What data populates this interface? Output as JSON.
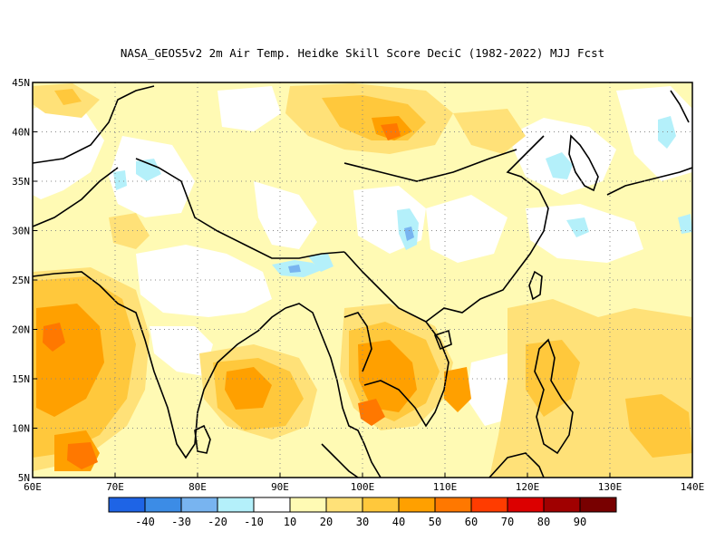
{
  "map": {
    "title": "NASA_GEOS5v2  2m Air Temp. Heidke Skill Score DeciC (1982-2022) MJJ Fcst",
    "lon_range": [
      60,
      140
    ],
    "lat_range": [
      5,
      45
    ],
    "lon_ticks": [
      "60E",
      "70E",
      "80E",
      "90E",
      "100E",
      "110E",
      "120E",
      "130E",
      "140E"
    ],
    "lat_ticks": [
      "5N",
      "10N",
      "15N",
      "20N",
      "25N",
      "30N",
      "35N",
      "40N",
      "45N"
    ],
    "grid": "dotted"
  },
  "colorbar": {
    "labels": [
      "-40",
      "-30",
      "-20",
      "-10",
      "10",
      "20",
      "30",
      "40",
      "50",
      "60",
      "70",
      "80",
      "90"
    ],
    "colors": [
      "#1e64e6",
      "#3c8ce6",
      "#78b4f0",
      "#b4f0fa",
      "#ffffff",
      "#fffab4",
      "#ffe178",
      "#ffc83c",
      "#ffa000",
      "#ff7800",
      "#ff3c00",
      "#dc0000",
      "#a00000",
      "#780000"
    ]
  }
}
